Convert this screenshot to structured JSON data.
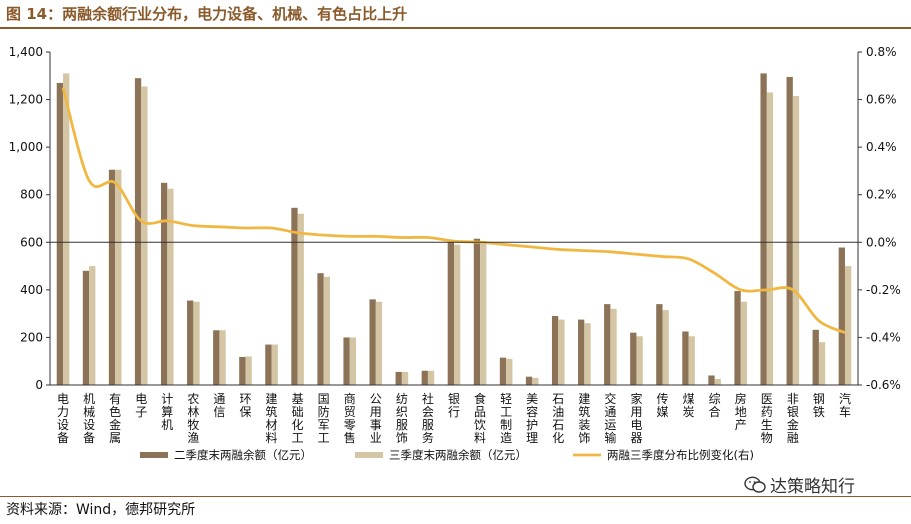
{
  "header": {
    "title": "图 14：两融余额行业分布，电力设备、机械、有色占比上升"
  },
  "footer": {
    "source": "资料来源：Wind，德邦研究所"
  },
  "watermark": {
    "text": "达策略知行",
    "icon": "wechat-icon"
  },
  "colors": {
    "series1": "#8c7256",
    "series2": "#d4c6a5",
    "line": "#f0b843",
    "rule": "#8b5a2b"
  },
  "chart_data": {
    "type": "bar+line",
    "categories": [
      "电力设备",
      "机械设备",
      "有色金属",
      "电子",
      "计算机",
      "农林牧渔",
      "通信",
      "环保",
      "建筑材料",
      "基础化工",
      "国防军工",
      "商贸零售",
      "公用事业",
      "纺织服饰",
      "社会服务",
      "银行",
      "食品饮料",
      "轻工制造",
      "美容护理",
      "石油石化",
      "建筑装饰",
      "交通运输",
      "家用电器",
      "传媒",
      "煤炭",
      "综合",
      "房地产",
      "医药生物",
      "非银金融",
      "钢铁",
      "汽车"
    ],
    "y_left": {
      "ticks": [
        "0",
        "200",
        "400",
        "600",
        "800",
        "1,000",
        "1,200",
        "1,400"
      ],
      "range": [
        0,
        1400
      ]
    },
    "y_right": {
      "ticks": [
        "-0.6%",
        "-0.4%",
        "-0.2%",
        "0.0%",
        "0.2%",
        "0.4%",
        "0.6%",
        "0.8%"
      ],
      "range": [
        -0.6,
        0.8
      ]
    },
    "series": [
      {
        "name": "二季度末两融余额（亿元）",
        "axis": "left",
        "kind": "bar",
        "values": [
          1270,
          480,
          905,
          1290,
          850,
          355,
          230,
          118,
          170,
          745,
          470,
          200,
          360,
          55,
          60,
          600,
          615,
          115,
          35,
          290,
          275,
          340,
          220,
          340,
          225,
          40,
          395,
          1310,
          1295,
          232,
          578
        ]
      },
      {
        "name": "三季度末两融余额（亿元）",
        "axis": "left",
        "kind": "bar",
        "values": [
          1310,
          500,
          905,
          1255,
          825,
          350,
          230,
          120,
          170,
          720,
          455,
          200,
          350,
          55,
          60,
          590,
          605,
          110,
          30,
          275,
          260,
          320,
          205,
          315,
          205,
          25,
          350,
          1230,
          1215,
          180,
          500
        ]
      },
      {
        "name": "两融三季度分布比例变化(右)",
        "axis": "right",
        "kind": "line",
        "values": [
          0.65,
          0.26,
          0.25,
          0.09,
          0.09,
          0.07,
          0.065,
          0.06,
          0.06,
          0.04,
          0.03,
          0.025,
          0.025,
          0.02,
          0.02,
          0.005,
          0.0,
          -0.01,
          -0.02,
          -0.03,
          -0.035,
          -0.04,
          -0.05,
          -0.06,
          -0.07,
          -0.13,
          -0.2,
          -0.2,
          -0.2,
          -0.33,
          -0.38
        ]
      }
    ],
    "legend_position": "bottom"
  }
}
